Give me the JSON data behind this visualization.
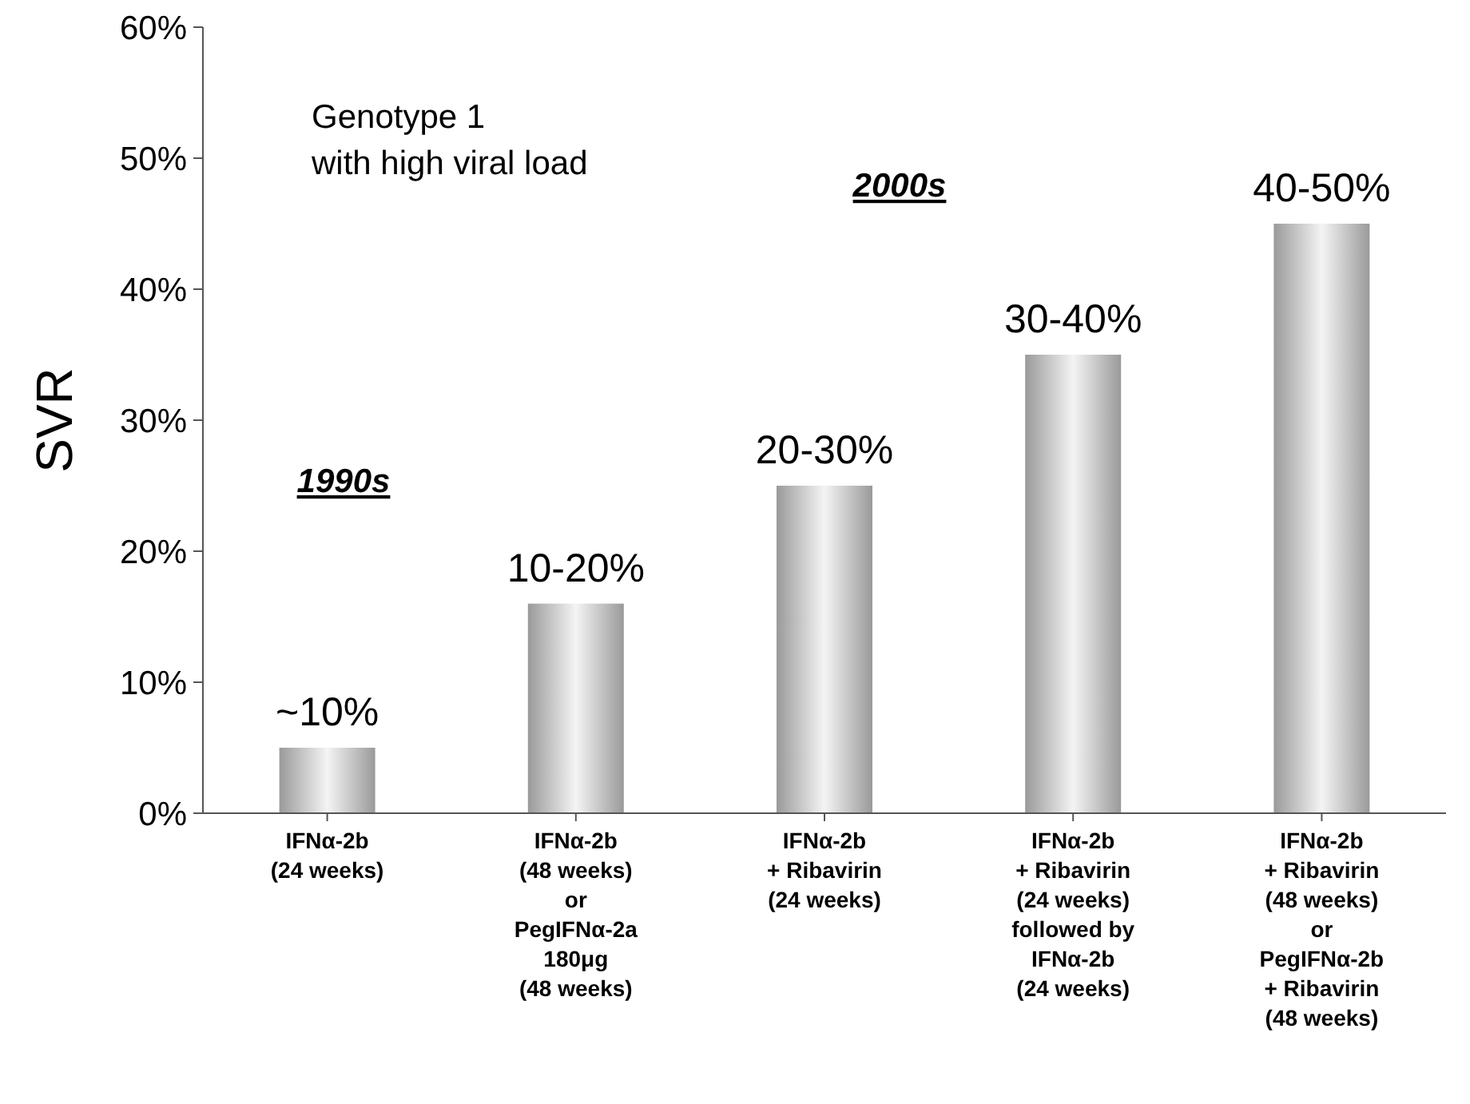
{
  "chart_data": {
    "type": "bar",
    "ylabel": "SVR",
    "categories": [
      "IFNα-2b\n(24 weeks)",
      "IFNα-2b\n(48 weeks)\nor\nPegIFNα-2a\n180μg\n(48 weeks)",
      "IFNα-2b\n+ Ribavirin\n(24 weeks)",
      "IFNα-2b\n+ Ribavirin\n(24 weeks)\nfollowed by\nIFNα-2b\n(24 weeks)",
      "IFNα-2b\n+ Ribavirin\n(48 weeks)\nor\nPegIFNα-2b\n+ Ribavirin\n(48 weeks)"
    ],
    "values": [
      5,
      16,
      25,
      35,
      45
    ],
    "color": "#9a9a9a",
    "ylim": [
      0,
      60
    ],
    "yticks": [
      {
        "value": 0,
        "label": "0%"
      },
      {
        "value": 10,
        "label": "10%"
      },
      {
        "value": 20,
        "label": "20%"
      },
      {
        "value": 30,
        "label": "30%"
      },
      {
        "value": 40,
        "label": "40%"
      },
      {
        "value": 50,
        "label": "50%"
      },
      {
        "value": 60,
        "label": "60%"
      }
    ],
    "grid": false,
    "annotations": [
      "Genotype 1\nwith high viral load",
      "1990s",
      "2000s",
      {
        "text": "~10%",
        "x": "IFNα-2b\n(24 weeks)",
        "y": 5
      },
      {
        "text": "10-20%",
        "x": "IFNα-2b\n(48 weeks)\nor\nPegIFNα-2a\n180μg\n(48 weeks)",
        "y": 16
      },
      {
        "text": "20-30%",
        "x": "IFNα-2b\n+ Ribavirin\n(24 weeks)",
        "y": 25
      },
      {
        "text": "30-40%",
        "x": "IFNα-2b\n+ Ribavirin\n(24 weeks)\nfollowed by\nIFNα-2b\n(24 weeks)",
        "y": 35
      },
      {
        "text": "40-50%",
        "x": "IFNα-2b\n+ Ribavirin\n(48 weeks)\nor\nPegIFNα-2b\n+ Ribavirin\n(48 weeks)",
        "y": 45
      }
    ]
  }
}
